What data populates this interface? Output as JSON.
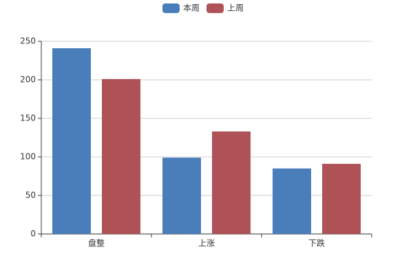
{
  "chart_data": {
    "type": "bar",
    "categories": [
      "盘整",
      "上涨",
      "下跌"
    ],
    "series": [
      {
        "name": "本周",
        "color": "#4a7ebb",
        "values": [
          241,
          99,
          85
        ]
      },
      {
        "name": "上周",
        "color": "#ae5257",
        "values": [
          201,
          133,
          91
        ]
      }
    ],
    "ylim": [
      0,
      250
    ],
    "yticks": [
      0,
      50,
      100,
      150,
      200,
      250
    ],
    "grid": true,
    "legend": "top"
  }
}
